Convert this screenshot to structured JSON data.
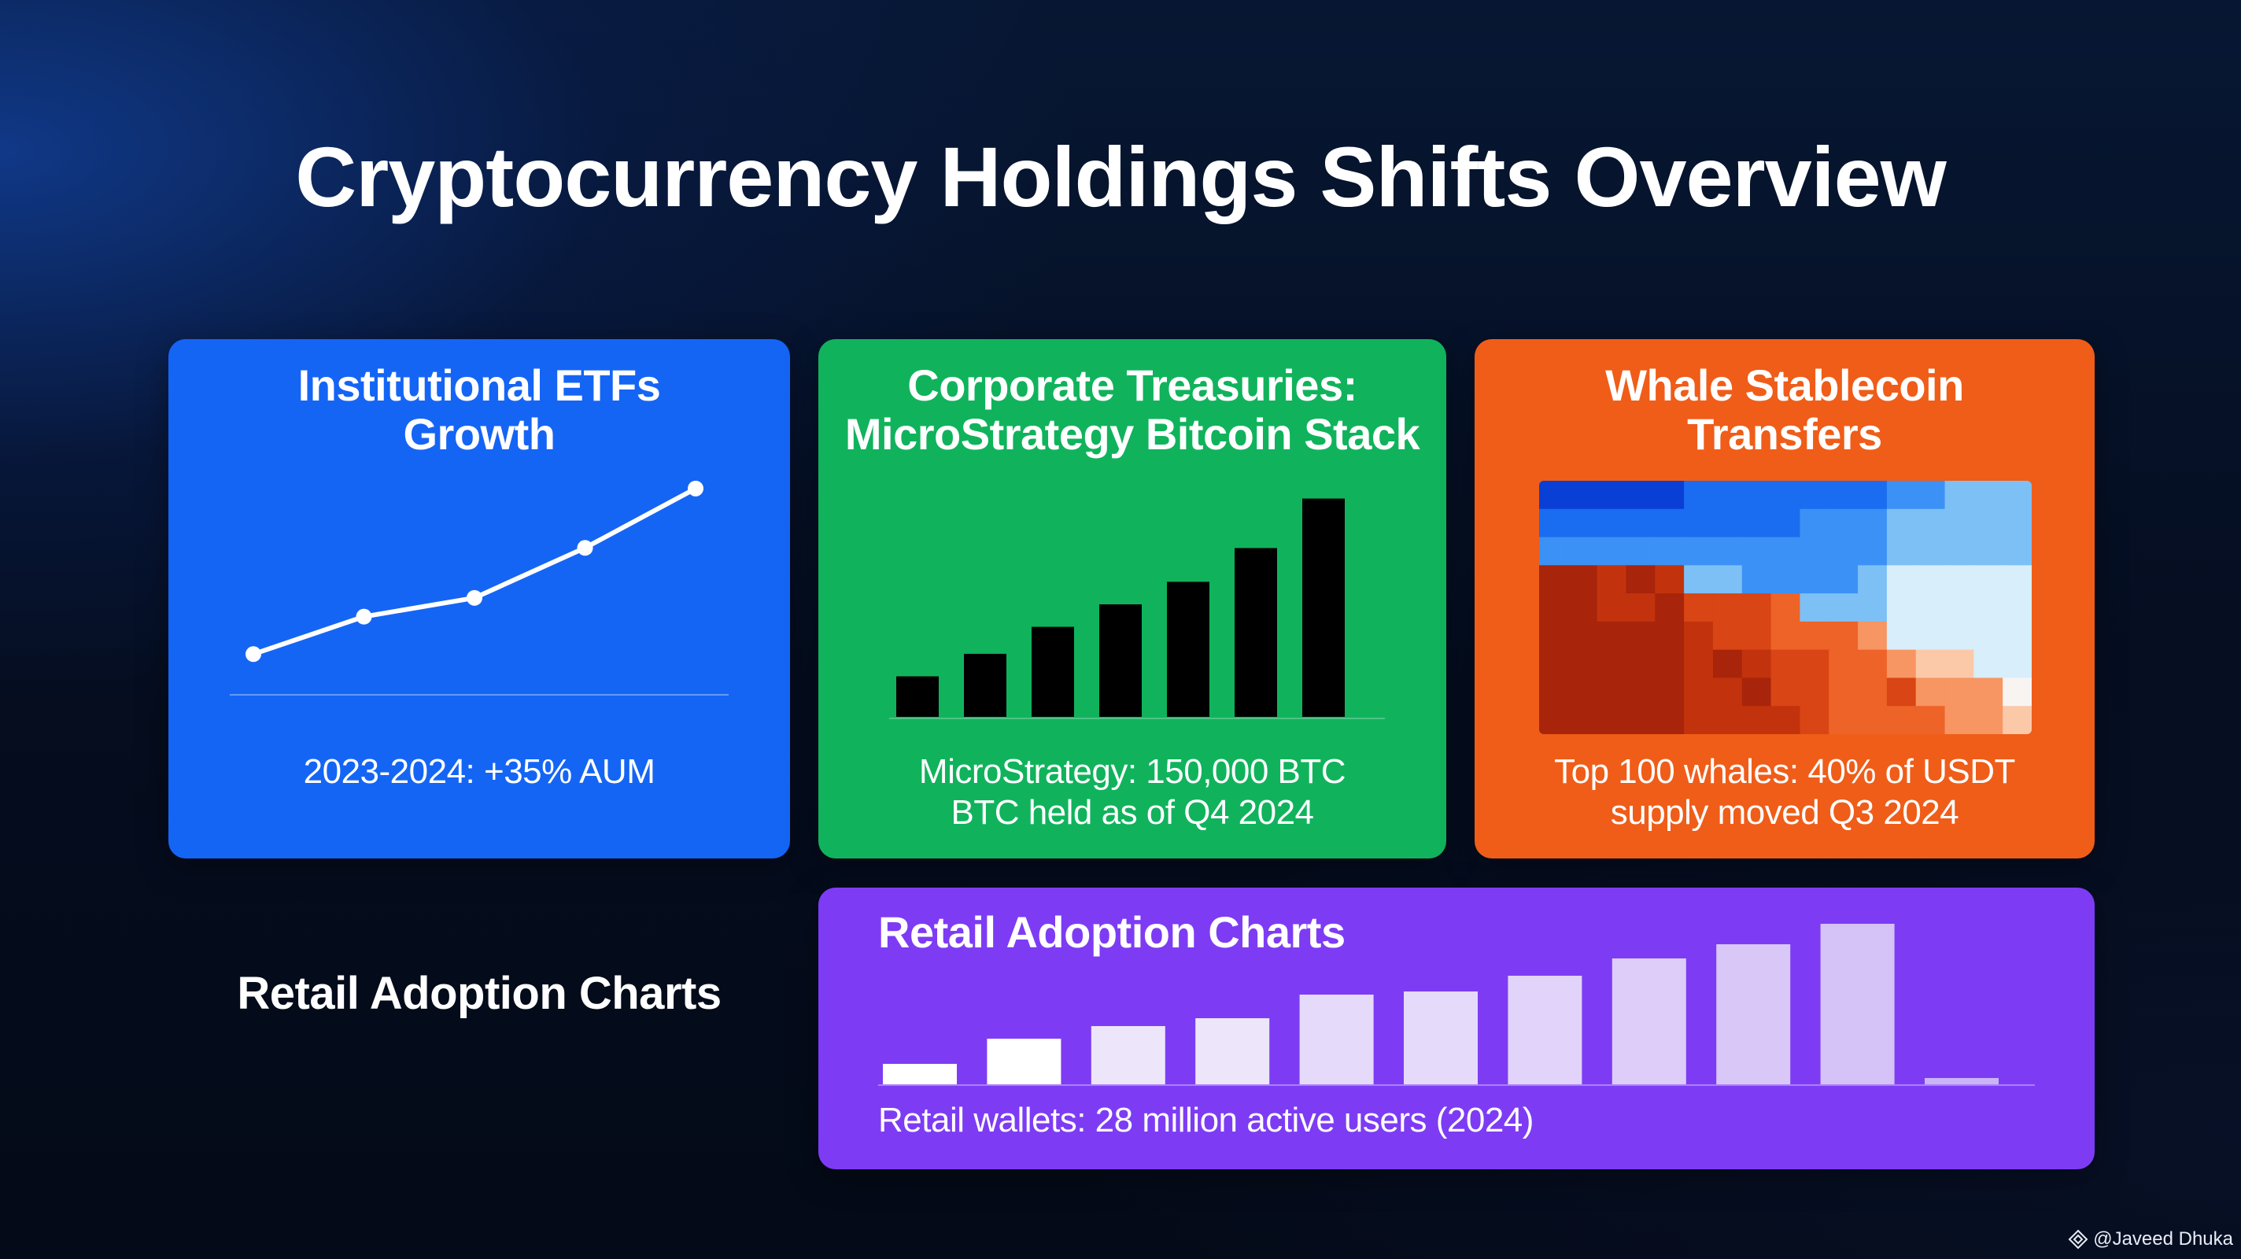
{
  "page": {
    "title": "Cryptocurrency Holdings Shifts Overview",
    "side_label": "Retail Adoption Charts",
    "watermark": "@Javeed Dhuka"
  },
  "cards": {
    "etf": {
      "title_lines": [
        "Institutional ETFs",
        "Growth"
      ],
      "caption_lines": [
        "2023-2024: +35% AUM"
      ],
      "color": "#1565f5"
    },
    "corp": {
      "title_lines": [
        "Corporate Treasuries:",
        "MicroStrategy Bitcoin Stack"
      ],
      "caption_lines": [
        "MicroStrategy: 150,000 BTC",
        "BTC held as of Q4 2024"
      ],
      "color": "#10b35c"
    },
    "whale": {
      "title_lines": [
        "Whale Stablecoin",
        "Transfers"
      ],
      "caption_lines": [
        "Top 100 whales: 40% of USDT",
        "supply moved Q3 2024"
      ],
      "color": "#ef5d19"
    },
    "retail": {
      "title": "Retail Adoption Charts",
      "caption": "Retail wallets: 28 million active users (2024)",
      "color": "#7d3cf4"
    }
  },
  "chart_data": [
    {
      "id": "etf-line",
      "type": "line",
      "series": [
        {
          "values": [
            10,
            22,
            28,
            44,
            63
          ]
        }
      ],
      "ylim": [
        0,
        68
      ],
      "line_color": "#ffffff"
    },
    {
      "id": "corp-bars",
      "type": "bar",
      "values": [
        18,
        28,
        40,
        50,
        60,
        75,
        97
      ],
      "ylim": [
        0,
        100
      ],
      "bar_color": "#000000"
    },
    {
      "id": "whale-heatmap",
      "type": "heatmap",
      "rows": 9,
      "cols": 17,
      "palette": [
        "#0a3fd6",
        "#1a6cf0",
        "#3b91f5",
        "#7cc0f5",
        "#d8eefa",
        "#f8f4f2",
        "#fbc9a8",
        "#f79563",
        "#ee6327",
        "#d94514",
        "#c2330d",
        "#a8240a"
      ]
    },
    {
      "id": "retail-bars",
      "type": "bar",
      "values": [
        13,
        29,
        37,
        42,
        57,
        59,
        69,
        80,
        89,
        102,
        4
      ],
      "ylim": [
        0,
        105
      ],
      "bar_colors": [
        "#ffffff",
        "#ffffff",
        "#ede6fb",
        "#ede6fb",
        "#e6dafa",
        "#e6dafa",
        "#e1d3f9",
        "#ddcdf8",
        "#d9c7f8",
        "#d5c2f7",
        "#cab4f5"
      ]
    }
  ]
}
